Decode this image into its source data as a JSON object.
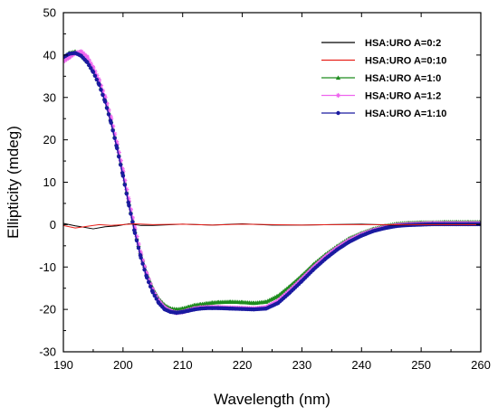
{
  "chart_data": {
    "type": "line",
    "xlabel": "Wavelength (nm)",
    "ylabel": "Ellipticity (mdeg)",
    "xlim": [
      190,
      260
    ],
    "ylim": [
      -30,
      50
    ],
    "xticks": [
      190,
      200,
      210,
      220,
      230,
      240,
      250,
      260
    ],
    "yticks": [
      -30,
      -20,
      -10,
      0,
      10,
      20,
      30,
      40,
      50
    ],
    "grid": false,
    "legend_position": "top-right",
    "series": [
      {
        "name": "HSA:URO A=0:2",
        "color": "#000000",
        "marker": "none",
        "x": [
          190,
          192,
          193,
          195,
          197,
          199,
          201,
          203,
          205,
          210,
          215,
          220,
          225,
          230,
          235,
          240,
          245,
          250,
          255,
          260
        ],
        "y": [
          0.3,
          -0.3,
          -0.5,
          -1.0,
          -0.5,
          -0.3,
          0.2,
          -0.2,
          -0.2,
          0.1,
          -0.1,
          0.2,
          -0.1,
          -0.1,
          0.0,
          0.1,
          -0.1,
          0.0,
          0.0,
          0.0
        ]
      },
      {
        "name": "HSA:URO A=0:10",
        "color": "#e8211b",
        "marker": "none",
        "x": [
          190,
          192,
          194,
          196,
          198,
          200,
          202,
          205,
          210,
          215,
          220,
          225,
          230,
          235,
          240,
          245,
          250,
          255,
          260
        ],
        "y": [
          -0.2,
          -0.8,
          -0.4,
          0.0,
          -0.2,
          0.0,
          0.2,
          0.0,
          0.1,
          -0.1,
          0.1,
          0.0,
          -0.1,
          0.0,
          0.0,
          0.0,
          0.0,
          0.0,
          0.0
        ]
      },
      {
        "name": "HSA:URO A=1:0",
        "color": "#1e8c1e",
        "marker": "triangle",
        "x": [
          190,
          191,
          192,
          193,
          194,
          195,
          196,
          197,
          198,
          199,
          200,
          201,
          202,
          203,
          204,
          205,
          206,
          207,
          208,
          209,
          210,
          211,
          212,
          213,
          214,
          215,
          216,
          218,
          220,
          222,
          224,
          226,
          228,
          230,
          232,
          234,
          236,
          238,
          240,
          242,
          244,
          246,
          248,
          250,
          252,
          254,
          256,
          258,
          260
        ],
        "y": [
          39.5,
          40.5,
          40.8,
          40.0,
          38.5,
          36.5,
          33.5,
          29.5,
          24.5,
          18.5,
          12.0,
          5.0,
          -1.5,
          -7.0,
          -11.5,
          -15.0,
          -17.5,
          -19.0,
          -19.8,
          -20.0,
          -19.8,
          -19.4,
          -19.0,
          -18.8,
          -18.6,
          -18.4,
          -18.3,
          -18.2,
          -18.3,
          -18.5,
          -18.2,
          -16.8,
          -14.5,
          -12.0,
          -9.3,
          -7.0,
          -5.0,
          -3.2,
          -2.0,
          -1.0,
          -0.3,
          0.2,
          0.4,
          0.5,
          0.5,
          0.6,
          0.6,
          0.6,
          0.6
        ]
      },
      {
        "name": "HSA:URO A=1:2",
        "color": "#ee66ee",
        "marker": "star",
        "x": [
          190,
          191,
          192,
          193,
          194,
          195,
          196,
          197,
          198,
          199,
          200,
          201,
          202,
          203,
          204,
          205,
          206,
          207,
          208,
          209,
          210,
          211,
          212,
          213,
          214,
          215,
          216,
          218,
          220,
          222,
          224,
          226,
          228,
          230,
          232,
          234,
          236,
          238,
          240,
          242,
          244,
          246,
          248,
          250,
          252,
          254,
          256,
          258,
          260
        ],
        "y": [
          38.5,
          39.5,
          40.5,
          40.8,
          39.5,
          37.0,
          34.0,
          30.0,
          25.0,
          19.0,
          12.5,
          5.5,
          -1.0,
          -7.0,
          -11.8,
          -15.5,
          -18.0,
          -19.6,
          -20.4,
          -20.8,
          -20.6,
          -20.2,
          -19.8,
          -19.6,
          -19.5,
          -19.5,
          -19.5,
          -19.6,
          -19.7,
          -19.8,
          -19.5,
          -18.0,
          -15.5,
          -12.8,
          -10.0,
          -7.5,
          -5.4,
          -3.6,
          -2.3,
          -1.3,
          -0.6,
          -0.1,
          0.1,
          0.2,
          0.3,
          0.3,
          0.3,
          0.3,
          0.3
        ]
      },
      {
        "name": "HSA:URO A=1:10",
        "color": "#1a1aa0",
        "marker": "circle",
        "x": [
          190,
          191,
          192,
          193,
          194,
          195,
          196,
          197,
          198,
          199,
          200,
          201,
          202,
          203,
          204,
          205,
          206,
          207,
          208,
          209,
          210,
          211,
          212,
          213,
          214,
          215,
          216,
          218,
          220,
          222,
          224,
          226,
          228,
          230,
          232,
          234,
          236,
          238,
          240,
          242,
          244,
          246,
          248,
          250,
          252,
          254,
          256,
          258,
          260
        ],
        "y": [
          39.5,
          40.3,
          40.5,
          39.8,
          38.3,
          36.0,
          33.0,
          29.0,
          24.0,
          18.0,
          11.5,
          4.5,
          -2.0,
          -7.8,
          -12.5,
          -16.0,
          -18.5,
          -20.0,
          -20.6,
          -20.8,
          -20.6,
          -20.3,
          -20.0,
          -19.8,
          -19.7,
          -19.7,
          -19.7,
          -19.8,
          -19.9,
          -20.0,
          -19.8,
          -18.5,
          -16.0,
          -13.3,
          -10.5,
          -8.0,
          -5.8,
          -4.0,
          -2.6,
          -1.5,
          -0.8,
          -0.3,
          -0.1,
          0.0,
          0.1,
          0.1,
          0.1,
          0.1,
          0.1
        ]
      }
    ]
  }
}
